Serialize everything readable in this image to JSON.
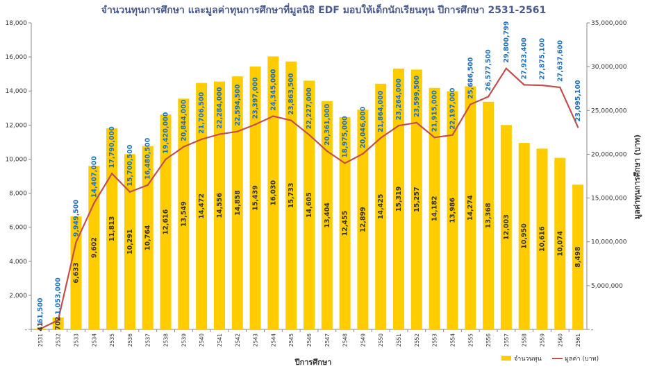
{
  "chart_data": {
    "type": "bar",
    "title": "จำนวนทุนการศึกษา และมูลค่าทุนการศึกษาที่มูลนิธิ EDF มอบให้เด็กนักเรียนทุน ปีการศึกษา 2531-2561",
    "xlabel": "ปีการศึกษา",
    "ylabel": "",
    "y2label": "มูลค่าทุนการศึกษา (บาท)",
    "ylim": [
      0,
      18000
    ],
    "y2lim": [
      0,
      35000000
    ],
    "yticks": [
      "-",
      "2,000",
      "4,000",
      "6,000",
      "8,000",
      "10,000",
      "12,000",
      "14,000",
      "16,000",
      "18,000"
    ],
    "y2ticks": [
      "-",
      "5,000,000",
      "10,000,000",
      "15,000,000",
      "20,000,000",
      "25,000,000",
      "30,000,000",
      "35,000,000"
    ],
    "categories": [
      "2531",
      "2532",
      "2533",
      "2534",
      "2535",
      "2536",
      "2537",
      "2538",
      "2539",
      "2540",
      "2541",
      "2542",
      "2543",
      "2544",
      "2545",
      "2546",
      "2547",
      "2548",
      "2549",
      "2550",
      "2551",
      "2552",
      "2553",
      "2554",
      "2555",
      "2556",
      "2557",
      "2558",
      "2559",
      "2560",
      "2561"
    ],
    "series": [
      {
        "name": "จำนวนทุน",
        "type": "bar",
        "axis": "left",
        "color": "#ffcc00",
        "values": [
          41,
          702,
          6633,
          9602,
          11813,
          10291,
          10764,
          12616,
          13549,
          14472,
          14556,
          14858,
          15439,
          16030,
          15733,
          14605,
          13404,
          12455,
          12899,
          14425,
          15319,
          15257,
          14182,
          13986,
          14274,
          13368,
          12003,
          10950,
          10616,
          10074,
          8498
        ],
        "labels": [
          "41",
          "702",
          "6,633",
          "9,602",
          "11,813",
          "10,291",
          "10,764",
          "12,616",
          "13,549",
          "14,472",
          "14,556",
          "14,858",
          "15,439",
          "16,030",
          "15,733",
          "14,605",
          "13,404",
          "12,455",
          "12,899",
          "14,425",
          "15,319",
          "15,257",
          "14,182",
          "13,986",
          "14,274",
          "13,368",
          "12,003",
          "10,950",
          "10,616",
          "10,074",
          "8,498"
        ]
      },
      {
        "name": "มูลค่า (บาท)",
        "type": "line",
        "axis": "right",
        "color": "#c0504d",
        "values": [
          61500,
          1053000,
          9949500,
          14407000,
          17790000,
          15700500,
          16480500,
          19420000,
          20844000,
          21706500,
          22284000,
          22594500,
          23397000,
          24345000,
          23863500,
          22227000,
          20361000,
          18975000,
          20046000,
          21864000,
          23264000,
          23599500,
          21915000,
          22197000,
          25686500,
          26577500,
          29800799,
          27923400,
          27875100,
          27637600,
          23095100
        ],
        "labels": [
          "61,500",
          "1,053,000",
          "9,949,500",
          "14,407,000",
          "17,790,000",
          "15,700,500",
          "16,480,500",
          "19,420,000",
          "20,844,000",
          "21,706,500",
          "22,284,000",
          "22,594,500",
          "23,397,000",
          "24,345,000",
          "23,863,500",
          "22,227,000",
          "20,361,000",
          "18,975,000",
          "20,046,000",
          "21,864,000",
          "23,264,000",
          "23,599,500",
          "21,915,000",
          "22,197,000",
          "25,686,500",
          "26,577,500",
          "29,800,799",
          "27,923,400",
          "27,875,100",
          "27,637,600",
          "23,095,100"
        ]
      }
    ],
    "legend_placement": "bottom-right",
    "grid": false
  }
}
